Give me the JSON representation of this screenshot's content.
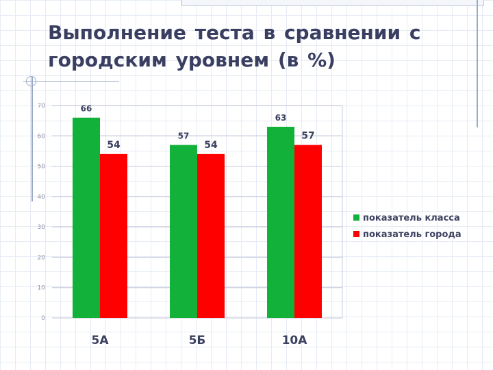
{
  "slide": {
    "title": "Выполнение теста в сравнении с городским уровнем (в %)"
  },
  "chart_data": {
    "type": "bar",
    "title": "",
    "categories": [
      "5А",
      "5Б",
      "10А"
    ],
    "series": [
      {
        "name": "показатель класса",
        "values": [
          66,
          57,
          63
        ],
        "color": "#12b23a"
      },
      {
        "name": "показатель города",
        "values": [
          54,
          54,
          57
        ],
        "color": "#ff0000"
      }
    ],
    "ylim": [
      0,
      70
    ],
    "yticks": [
      0,
      10,
      20,
      30,
      40,
      50,
      60,
      70
    ],
    "grid": true,
    "legend": "right"
  }
}
